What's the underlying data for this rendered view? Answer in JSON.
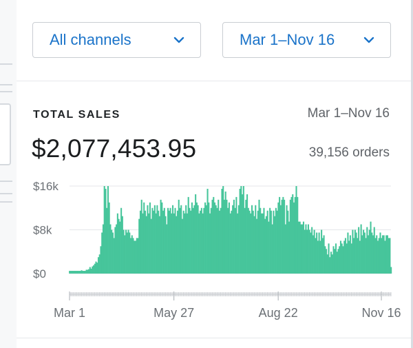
{
  "filters": {
    "channel": {
      "label": "All channels",
      "icon": "chevron-down-icon"
    },
    "date_range": {
      "label": "Mar 1–Nov 16",
      "icon": "chevron-down-icon"
    }
  },
  "card": {
    "title": "TOTAL SALES",
    "date_range": "Mar 1–Nov 16",
    "total": "$2,077,453.95",
    "orders": "39,156 orders"
  },
  "colors": {
    "accent": "#1a73c9",
    "bar": "#47c59b"
  },
  "chart_data": {
    "type": "area",
    "title": "",
    "xlabel": "",
    "ylabel": "",
    "y_ticks": [
      {
        "label": "$16k",
        "value": 16000
      },
      {
        "label": "$8k",
        "value": 8000
      },
      {
        "label": "$0",
        "value": 0
      }
    ],
    "x_ticks": [
      {
        "label": "Mar 1",
        "index": 0
      },
      {
        "label": "May 27",
        "index": 87
      },
      {
        "label": "Aug 22",
        "index": 174
      },
      {
        "label": "Nov 16",
        "index": 260
      }
    ],
    "ylim": [
      0,
      16000
    ],
    "grid": true,
    "series": [
      {
        "values": [
          500,
          500,
          500,
          500,
          500,
          500,
          500,
          500,
          500,
          500,
          600,
          500,
          500,
          500,
          700,
          700,
          800,
          1200,
          900,
          1300,
          1500,
          1800,
          2200,
          2000,
          3000,
          3500,
          5000,
          7500,
          9000,
          16000,
          15500,
          12000,
          16000,
          13000,
          9000,
          8000,
          7500,
          6500,
          8500,
          9000,
          11000,
          10000,
          9500,
          12000,
          10500,
          8000,
          7000,
          8000,
          7500,
          8000,
          7500,
          6500,
          7000,
          6500,
          6000,
          6000,
          6500,
          6500,
          10000,
          11500,
          13500,
          11000,
          13000,
          11500,
          10500,
          12500,
          11000,
          13000,
          10000,
          12000,
          11500,
          12500,
          11000,
          12500,
          11500,
          10500,
          13500,
          13000,
          11500,
          12000,
          10500,
          9000,
          12000,
          11500,
          12000,
          11000,
          12500,
          11000,
          12000,
          10500,
          11500,
          13500,
          12000,
          12500,
          10000,
          11500,
          11000,
          12500,
          11000,
          14000,
          12000,
          11500,
          13000,
          12000,
          12500,
          14500,
          13000,
          12500,
          11000,
          11500,
          12000,
          11000,
          12000,
          13000,
          12500,
          15500,
          13000,
          11000,
          12000,
          13500,
          14000,
          13000,
          12500,
          12000,
          13500,
          11500,
          12000,
          15500,
          16000,
          13500,
          15000,
          13500,
          12000,
          13000,
          11000,
          11500,
          12500,
          13500,
          12000,
          14000,
          11000,
          12500,
          15500,
          16000,
          14500,
          16000,
          12000,
          13500,
          14500,
          12000,
          11500,
          11000,
          12500,
          11500,
          10500,
          12500,
          10000,
          11500,
          13500,
          12000,
          11000,
          11000,
          12000,
          10000,
          10500,
          11500,
          9500,
          12000,
          11500,
          9000,
          11500,
          10500,
          12000,
          11500,
          13000,
          14000,
          12500,
          13500,
          14000,
          13500,
          9000,
          12500,
          11500,
          9500,
          13500,
          14000,
          14500,
          13000,
          14000,
          16000,
          14000,
          9500,
          9500,
          9000,
          9000,
          9500,
          8000,
          9000,
          8000,
          9000,
          8000,
          7500,
          8500,
          7000,
          8000,
          6500,
          7500,
          6000,
          7500,
          6000,
          8000,
          6500,
          7000,
          5000,
          4500,
          3500,
          5500,
          3000,
          4000,
          3500,
          5000,
          4500,
          5500,
          4000,
          4500,
          5000,
          6000,
          5500,
          5000,
          6000,
          6500,
          5500,
          7500,
          6000,
          7000,
          5500,
          8000,
          6500,
          8000,
          7500,
          6500,
          8500,
          6000,
          9000,
          7000,
          8000,
          7500,
          6500,
          8500,
          7000,
          8000,
          9500,
          7500,
          7000,
          8500,
          6500,
          7000,
          6000,
          6500,
          7500,
          6500,
          7000,
          7000,
          6000,
          7000,
          7000,
          6500,
          6500,
          1200
        ]
      }
    ]
  }
}
